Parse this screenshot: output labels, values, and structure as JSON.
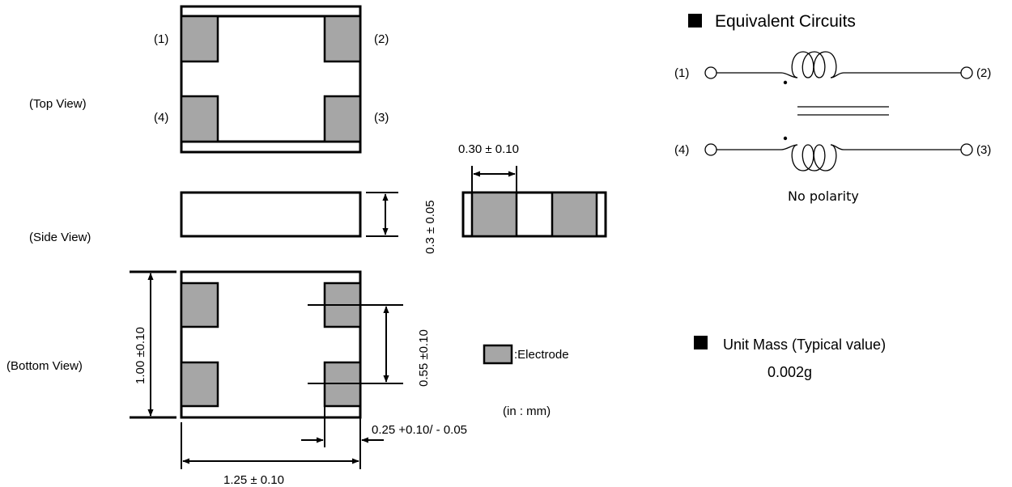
{
  "views": {
    "top": "(Top View)",
    "side": "(Side View)",
    "bottom": "(Bottom View)"
  },
  "pins": {
    "p1": "(1)",
    "p2": "(2)",
    "p3": "(3)",
    "p4": "(4)"
  },
  "dimensions": {
    "electrode_width": "0.30 ± 0.10",
    "thickness": "0.3 ± 0.05",
    "height": "1.00 ±0.10",
    "pad_pitch": "0.55 ±0.10",
    "pad_width": "0.25 +0.10/ - 0.05",
    "length": "1.25 ±  0.10"
  },
  "legend": {
    "electrode": ":Electrode",
    "units": "(in : mm)"
  },
  "equivalent_circuits": {
    "title": "Equivalent Circuits",
    "note": "No polarity"
  },
  "unit_mass": {
    "title": "Unit Mass (Typical value)",
    "value": "0.002g"
  },
  "colors": {
    "electrode": "#a6a6a6",
    "line": "#000000"
  }
}
